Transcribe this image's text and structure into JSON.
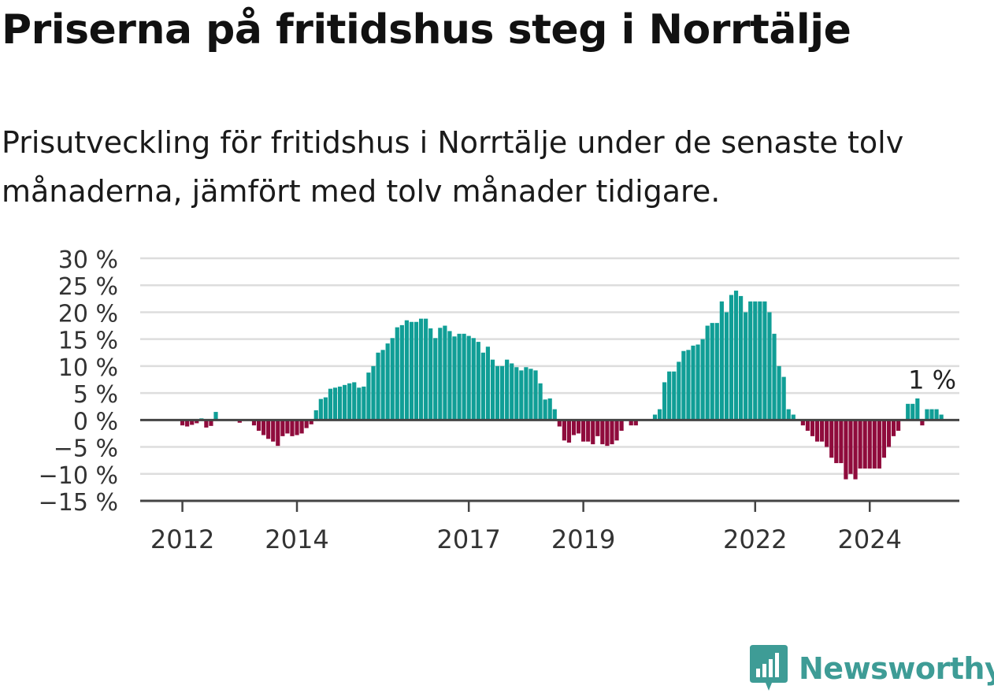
{
  "title": "Priserna på fritidshus steg i Norrtälje",
  "subtitle": "Prisutveckling för fritidshus i Norrtälje under de senaste tolv månaderna, jämfört med tolv månader tidigare.",
  "logo": {
    "text": "Newsworthy",
    "icon": "newsworthy-chart-icon",
    "color": "#3e9c96"
  },
  "chart_data": {
    "type": "bar",
    "title": "",
    "xlabel": "",
    "ylabel": "",
    "ylim": [
      -15,
      30
    ],
    "y_ticks": [
      30,
      25,
      20,
      15,
      10,
      5,
      0,
      -5,
      -10,
      -15
    ],
    "y_tick_labels": [
      "30 %",
      "25 %",
      "20 %",
      "15 %",
      "10 %",
      "5 %",
      "0 %",
      "−5 %",
      "−10 %",
      "−15 %"
    ],
    "x_tick_labels": [
      {
        "label": "2012",
        "index": 8
      },
      {
        "label": "2014",
        "index": 32
      },
      {
        "label": "2017",
        "index": 68
      },
      {
        "label": "2019",
        "index": 92
      },
      {
        "label": "2022",
        "index": 128
      },
      {
        "label": "2024",
        "index": 152
      }
    ],
    "annotation": {
      "label": "1 %",
      "index": 164
    },
    "grid": true,
    "positive_color": "#109e96",
    "negative_color": "#8f0b3c",
    "values": [
      0,
      0,
      0,
      0,
      0,
      0,
      0,
      0,
      -1,
      -1.2,
      -0.9,
      -0.6,
      0.3,
      -1.4,
      -1.1,
      1.5,
      0,
      0,
      0,
      0,
      -0.5,
      0,
      0,
      -1,
      -2,
      -2.8,
      -3.5,
      -4,
      -4.8,
      -3,
      -2.5,
      -3,
      -2.8,
      -2.5,
      -1.5,
      -0.8,
      1.8,
      3.9,
      4.2,
      5.8,
      6,
      6.2,
      6.5,
      6.8,
      7,
      6,
      6.2,
      8.8,
      10,
      12.5,
      13,
      14.2,
      15.2,
      17.2,
      17.6,
      18.5,
      18.2,
      18.2,
      18.8,
      18.8,
      17,
      15.2,
      17.1,
      17.5,
      16.5,
      15.5,
      16,
      16,
      15.6,
      15.2,
      14.5,
      12.5,
      13.6,
      11.2,
      10,
      10,
      11.2,
      10.5,
      9.8,
      9.2,
      9.8,
      9.5,
      9.2,
      6.8,
      3.8,
      4,
      2,
      -1.2,
      -3.8,
      -4.2,
      -2.8,
      -2.5,
      -4,
      -4,
      -4.5,
      -3,
      -4.5,
      -4.8,
      -4.5,
      -3.8,
      -2,
      0,
      -1,
      -1,
      0,
      0,
      0,
      1,
      2,
      7,
      9,
      9,
      10.8,
      12.8,
      13,
      13.8,
      14,
      15,
      17.5,
      18,
      18,
      22,
      20,
      23.2,
      24,
      23,
      20,
      22,
      22,
      22,
      22,
      20,
      16,
      10,
      8,
      2,
      1,
      0,
      -1,
      -2,
      -3,
      -4,
      -4,
      -5,
      -7,
      -8,
      -8,
      -11,
      -10,
      -11,
      -9,
      -9,
      -9,
      -9,
      -9,
      -7,
      -5,
      -3,
      -2,
      0,
      3,
      3,
      4,
      -1,
      2,
      2,
      2,
      1
    ]
  }
}
